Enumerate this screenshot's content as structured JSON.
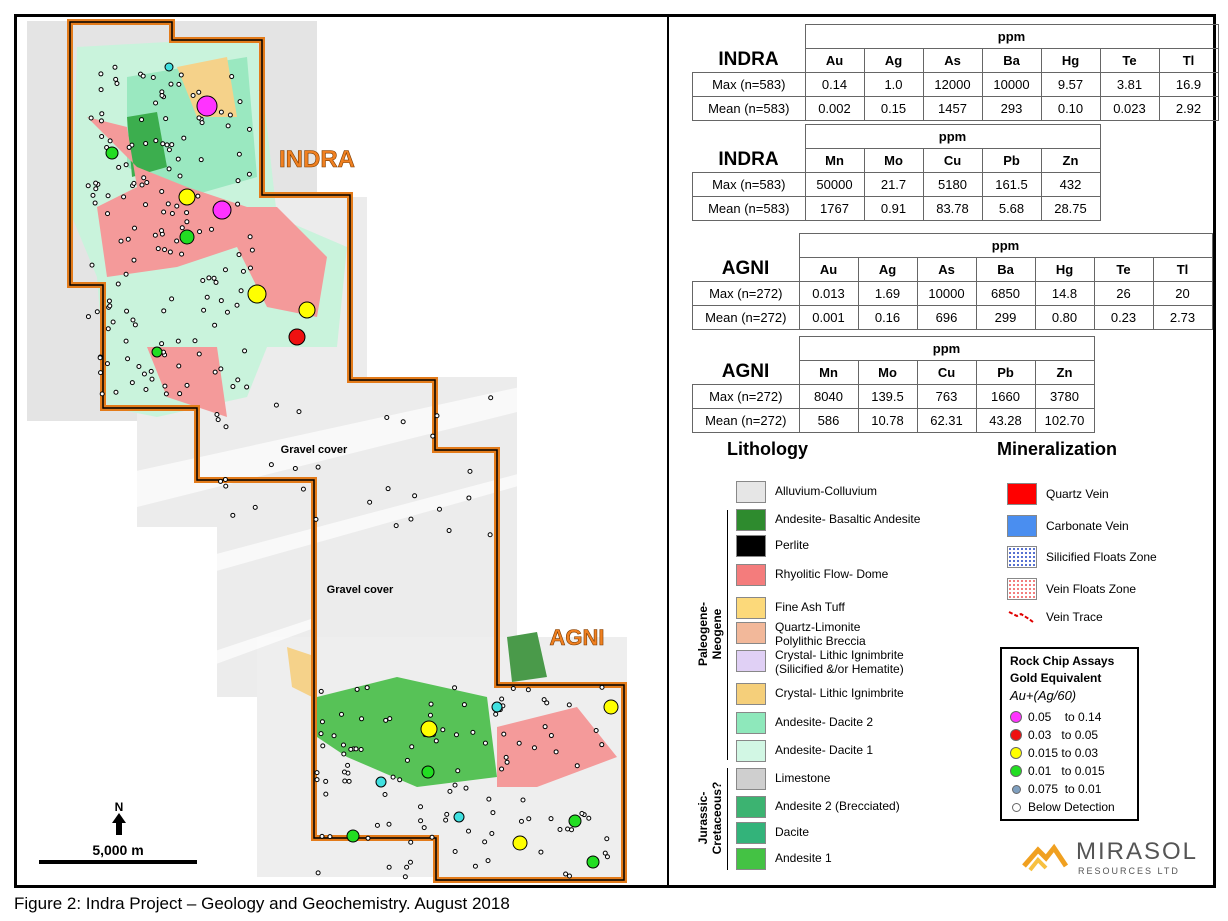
{
  "map": {
    "labels": [
      "INDRA",
      "AGNI",
      "Gravel cover",
      "Gravel cover"
    ],
    "north": "N",
    "scale": "5,000 m"
  },
  "tables": [
    {
      "title": "INDRA",
      "unit": "ppm",
      "columns": [
        "Au",
        "Ag",
        "As",
        "Ba",
        "Hg",
        "Te",
        "Tl"
      ],
      "rows": [
        [
          "Max (n=583)",
          "0.14",
          "1.0",
          "12000",
          "10000",
          "9.57",
          "3.81",
          "16.9"
        ],
        [
          "Mean (n=583)",
          "0.002",
          "0.15",
          "1457",
          "293",
          "0.10",
          "0.023",
          "2.92"
        ]
      ]
    },
    {
      "title": "INDRA",
      "unit": "ppm",
      "columns": [
        "Mn",
        "Mo",
        "Cu",
        "Pb",
        "Zn"
      ],
      "rows": [
        [
          "Max (n=583)",
          "50000",
          "21.7",
          "5180",
          "161.5",
          "432"
        ],
        [
          "Mean (n=583)",
          "1767",
          "0.91",
          "83.78",
          "5.68",
          "28.75"
        ]
      ]
    },
    {
      "title": "AGNI",
      "unit": "ppm",
      "columns": [
        "Au",
        "Ag",
        "As",
        "Ba",
        "Hg",
        "Te",
        "Tl"
      ],
      "rows": [
        [
          "Max (n=272)",
          "0.013",
          "1.69",
          "10000",
          "6850",
          "14.8",
          "26",
          "20"
        ],
        [
          "Mean (n=272)",
          "0.001",
          "0.16",
          "696",
          "299",
          "0.80",
          "0.23",
          "2.73"
        ]
      ]
    },
    {
      "title": "AGNI",
      "unit": "ppm",
      "columns": [
        "Mn",
        "Mo",
        "Cu",
        "Pb",
        "Zn"
      ],
      "rows": [
        [
          "Max (n=272)",
          "8040",
          "139.5",
          "763",
          "1660",
          "3780"
        ],
        [
          "Mean (n=272)",
          "586",
          "10.78",
          "62.31",
          "43.28",
          "102.70"
        ]
      ]
    }
  ],
  "lithology": {
    "title": "Lithology",
    "items": [
      {
        "label": "Alluvium-Colluvium",
        "color": "#e6e6e6"
      },
      {
        "label": "Andesite- Basaltic Andesite",
        "color": "#2e8b2e"
      },
      {
        "label": "Perlite",
        "color": "#000000"
      },
      {
        "label": "Rhyolitic Flow- Dome",
        "color": "#f47c7c"
      },
      {
        "label": "Fine Ash Tuff",
        "color": "#fcd97a"
      },
      {
        "label": "Quartz-Limonite\nPolylithic Breccia",
        "color": "#f2b89a"
      },
      {
        "label": "Crystal- Lithic Ignimbrite\n(Silicified &/or Hematite)",
        "color": "#e0d0f5"
      },
      {
        "label": "Crystal- Lithic Ignimbrite",
        "color": "#f5cf7a"
      },
      {
        "label": "Andesite- Dacite 2",
        "color": "#8ee8bb"
      },
      {
        "label": "Andesite- Dacite 1",
        "color": "#d2f7e4"
      },
      {
        "label": "Limestone",
        "color": "#cfcfcf"
      },
      {
        "label": "Andesite 2 (Brecciated)",
        "color": "#3cb371"
      },
      {
        "label": "Dacite",
        "color": "#33b37a"
      },
      {
        "label": "Andesite 1",
        "color": "#44c244"
      }
    ],
    "groups": [
      "Paleogene-\nNeogene",
      "Jurassic-\nCretaceous?"
    ]
  },
  "mineralization": {
    "title": "Mineralization",
    "items": [
      {
        "label": "Quartz Vein",
        "color": "#ff0000"
      },
      {
        "label": "Carbonate Vein",
        "color": "#4a8ef0"
      },
      {
        "label": "Silicified Floats Zone",
        "color": "#3050c8"
      },
      {
        "label": "Vein Floats Zone",
        "color": "#f06060"
      },
      {
        "label": "Vein Trace",
        "color": "#e00000"
      }
    ]
  },
  "assays": {
    "title": "Rock Chip Assays\nGold Equivalent",
    "formula": "Au+(Ag/60)",
    "items": [
      {
        "label": "0.05    to 0.14",
        "color": "#ff33ff"
      },
      {
        "label": "0.03   to 0.05",
        "color": "#ee1111"
      },
      {
        "label": "0.015 to 0.03",
        "color": "#ffff00"
      },
      {
        "label": "0.01   to 0.015",
        "color": "#22dd22"
      },
      {
        "label": "0.075  to 0.01",
        "color": "#7f9fbf"
      },
      {
        "label": "Below Detection",
        "color": "#ffffff"
      }
    ]
  },
  "logo": {
    "name": "MIRASOL",
    "sub": "RESOURCES LTD"
  },
  "caption": "Figure 2: Indra Project – Geology and Geochemistry. August 2018"
}
